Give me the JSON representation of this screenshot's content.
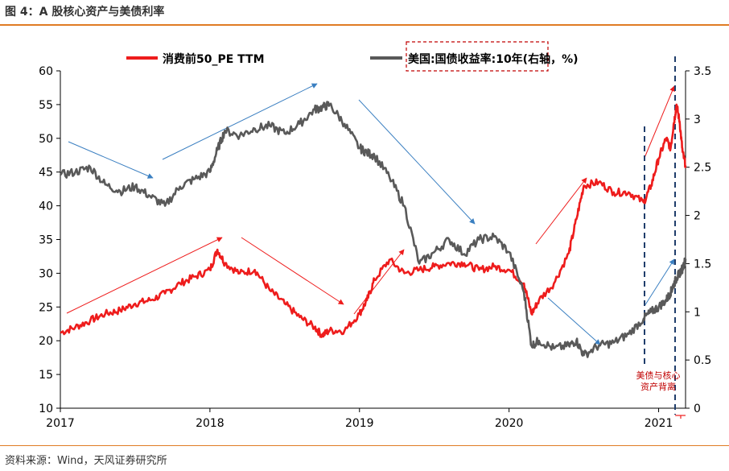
{
  "figure": {
    "title": "图 4：A 股核心资产与美债利率",
    "source": "资料来源：Wind，天风证券研究所"
  },
  "chart_data": {
    "type": "line",
    "title": "",
    "xlabel": "",
    "ylabel": "",
    "x_ticks": [
      "2017",
      "2018",
      "2019",
      "2020",
      "2021"
    ],
    "x_range": [
      2017.0,
      2021.18
    ],
    "y_left": {
      "range": [
        10,
        60
      ],
      "ticks": [
        "10",
        "15",
        "20",
        "25",
        "30",
        "35",
        "40",
        "45",
        "50",
        "55",
        "60"
      ]
    },
    "y_right": {
      "range": [
        0,
        3.5
      ],
      "ticks": [
        "0",
        "0.5",
        "1",
        "1.5",
        "2",
        "2.5",
        "3",
        "3.5"
      ]
    },
    "legend_position": "top-center",
    "grid": false,
    "series": [
      {
        "name": "消费前50_PE TTM",
        "axis": "left",
        "color": "#ee1c1c",
        "x": [
          2017.0,
          2017.1,
          2017.2,
          2017.3,
          2017.4,
          2017.5,
          2017.6,
          2017.7,
          2017.8,
          2017.9,
          2018.0,
          2018.05,
          2018.1,
          2018.2,
          2018.3,
          2018.4,
          2018.5,
          2018.6,
          2018.7,
          2018.75,
          2018.8,
          2018.9,
          2019.0,
          2019.05,
          2019.1,
          2019.2,
          2019.3,
          2019.4,
          2019.5,
          2019.6,
          2019.7,
          2019.8,
          2019.9,
          2020.0,
          2020.1,
          2020.15,
          2020.2,
          2020.3,
          2020.4,
          2020.45,
          2020.5,
          2020.6,
          2020.7,
          2020.8,
          2020.9,
          2020.95,
          2021.0,
          2021.05,
          2021.08,
          2021.1,
          2021.12,
          2021.14,
          2021.16,
          2021.18
        ],
        "values": [
          21.2,
          22,
          23,
          24,
          24.5,
          25.5,
          26,
          27,
          28.5,
          29.5,
          30.5,
          33.5,
          31.5,
          30,
          30.5,
          27.5,
          25.5,
          23.5,
          22,
          20.8,
          21.5,
          21.5,
          24,
          26,
          29,
          32,
          30,
          30.5,
          31,
          31.5,
          31.5,
          30.5,
          31,
          30.5,
          28.5,
          24,
          26,
          28.5,
          33,
          38,
          43,
          43.5,
          42,
          42,
          40.5,
          43,
          47,
          50,
          48.5,
          52,
          55,
          52.5,
          48,
          46
        ]
      },
      {
        "name": "美国:国债收益率:10年(右轴，%)",
        "axis": "right",
        "color": "#595959",
        "x": [
          2017.0,
          2017.1,
          2017.2,
          2017.3,
          2017.4,
          2017.5,
          2017.6,
          2017.7,
          2017.8,
          2017.9,
          2018.0,
          2018.05,
          2018.1,
          2018.2,
          2018.3,
          2018.4,
          2018.5,
          2018.6,
          2018.7,
          2018.75,
          2018.8,
          2018.9,
          2019.0,
          2019.05,
          2019.1,
          2019.2,
          2019.3,
          2019.4,
          2019.5,
          2019.6,
          2019.7,
          2019.8,
          2019.9,
          2020.0,
          2020.1,
          2020.15,
          2020.2,
          2020.3,
          2020.4,
          2020.45,
          2020.5,
          2020.6,
          2020.7,
          2020.8,
          2020.9,
          2020.95,
          2021.0,
          2021.05,
          2021.08,
          2021.1,
          2021.12,
          2021.14,
          2021.16,
          2021.18
        ],
        "values": [
          2.42,
          2.45,
          2.5,
          2.32,
          2.25,
          2.3,
          2.2,
          2.1,
          2.3,
          2.38,
          2.45,
          2.68,
          2.88,
          2.83,
          2.9,
          2.93,
          2.85,
          2.95,
          3.1,
          3.12,
          3.15,
          2.95,
          2.7,
          2.65,
          2.62,
          2.4,
          2.1,
          1.5,
          1.62,
          1.75,
          1.6,
          1.75,
          1.78,
          1.62,
          1.2,
          0.65,
          0.7,
          0.62,
          0.65,
          0.7,
          0.55,
          0.65,
          0.68,
          0.77,
          0.93,
          1.0,
          1.05,
          1.12,
          1.2,
          1.28,
          1.35,
          1.4,
          1.45,
          1.55
        ]
      }
    ],
    "annotations": {
      "text": "美债与核心资产背离"
    }
  }
}
